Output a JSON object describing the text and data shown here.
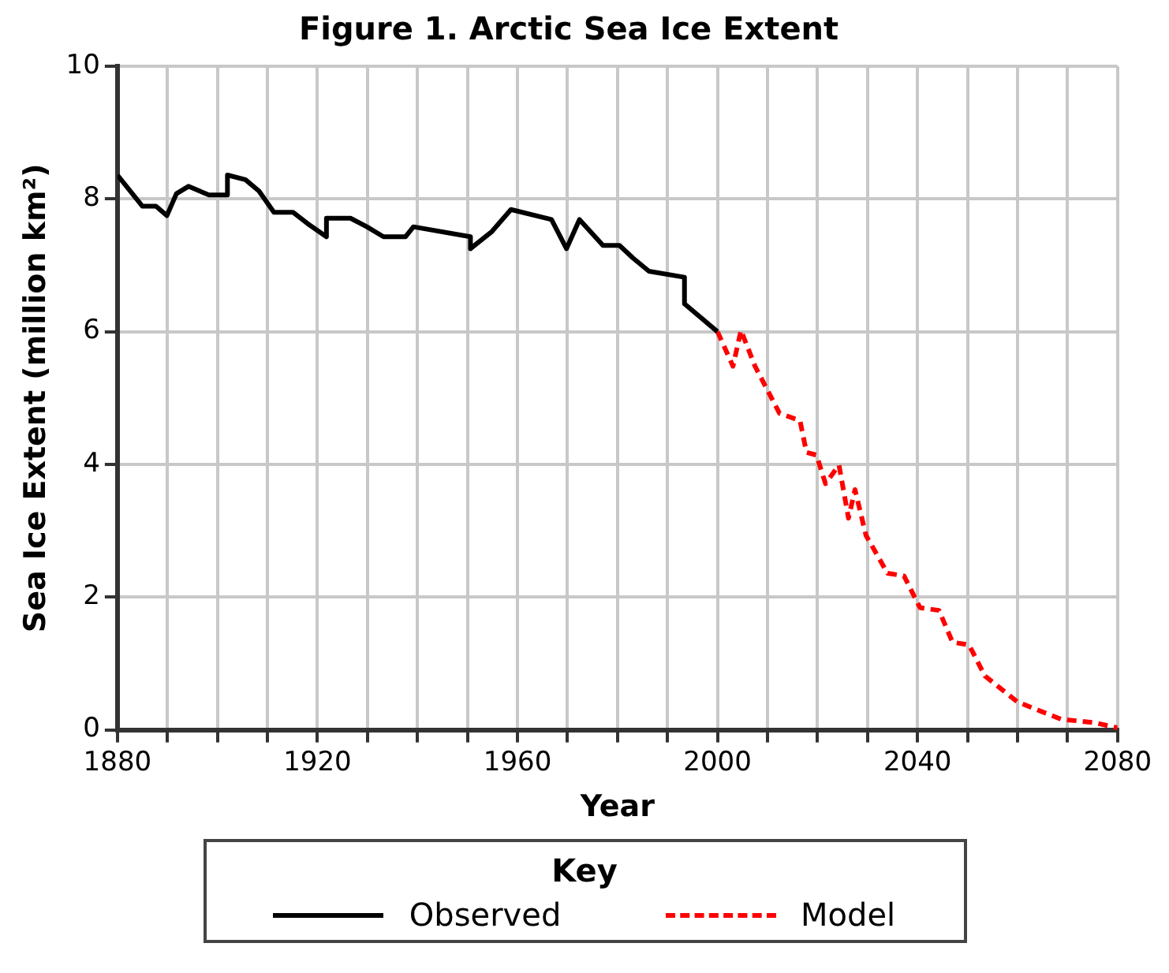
{
  "chart_data": {
    "type": "line",
    "title": "Figure 1. Arctic Sea Ice Extent",
    "xlabel": "Year",
    "ylabel": "Sea Ice Extent (million km²)",
    "legend_title": "Key",
    "legend": "bottom",
    "grid": true,
    "marker": "none",
    "xlim": [
      1880,
      2080
    ],
    "xticks": [
      1880,
      {
        "value": 1890,
        "label": null
      },
      {
        "value": 1900,
        "label": null
      },
      {
        "value": 1910,
        "label": null
      },
      1920,
      {
        "value": 1930,
        "label": null
      },
      {
        "value": 1940,
        "label": null
      },
      {
        "value": 1950,
        "label": null
      },
      1960,
      {
        "value": 1970,
        "label": null
      },
      {
        "value": 1980,
        "label": null
      },
      {
        "value": 1990,
        "label": null
      },
      2000,
      {
        "value": 2010,
        "label": null
      },
      {
        "value": 2020,
        "label": null
      },
      {
        "value": 2030,
        "label": null
      },
      2040,
      {
        "value": 2050,
        "label": null
      },
      {
        "value": 2060,
        "label": null
      },
      {
        "value": 2070,
        "label": null
      },
      2080
    ],
    "ylim": [
      0,
      10
    ],
    "yticks": [
      0,
      2,
      4,
      6,
      8,
      10
    ],
    "series": [
      {
        "name": "Observed",
        "color": "#000000",
        "line_style": "solid",
        "x": [
          1880,
          1885,
          1887.7,
          1889.9,
          1891.8,
          1894.2,
          1898.3,
          1902,
          1902,
          1905.6,
          1908.3,
          1911.3,
          1915.1,
          1918,
          1921.8,
          1921.8,
          1926.6,
          1929.9,
          1933.2,
          1937.6,
          1939.2,
          1950.6,
          1950.6,
          1954.9,
          1958.7,
          1966.8,
          1969.8,
          1972.4,
          1977.1,
          1980.4,
          1983.1,
          1986.3,
          1993.4,
          1993.4,
          2000
        ],
        "values": [
          8.36,
          7.89,
          7.89,
          7.75,
          8.08,
          8.19,
          8.06,
          8.06,
          8.36,
          8.29,
          8.12,
          7.8,
          7.8,
          7.63,
          7.43,
          7.71,
          7.71,
          7.58,
          7.43,
          7.43,
          7.58,
          7.43,
          7.25,
          7.51,
          7.84,
          7.69,
          7.25,
          7.69,
          7.3,
          7.3,
          7.11,
          6.91,
          6.82,
          6.42,
          6.0
        ]
      },
      {
        "name": "Model",
        "color": "#ff0000",
        "line_style": "dashed",
        "x": [
          2000,
          2003.1,
          2004.7,
          2007.5,
          2012.4,
          2016.5,
          2017.8,
          2019.8,
          2021.6,
          2024.3,
          2026.2,
          2027.5,
          2029.7,
          2034,
          2037.3,
          2040.5,
          2044.3,
          2047,
          2050.3,
          2053.5,
          2060,
          2068.7,
          2075.2,
          2080
        ],
        "values": [
          6.0,
          5.48,
          6.02,
          5.48,
          4.77,
          4.66,
          4.18,
          4.14,
          3.71,
          3.99,
          3.19,
          3.62,
          2.93,
          2.36,
          2.32,
          1.84,
          1.8,
          1.32,
          1.28,
          0.81,
          0.42,
          0.16,
          0.11,
          0.03
        ]
      }
    ]
  }
}
